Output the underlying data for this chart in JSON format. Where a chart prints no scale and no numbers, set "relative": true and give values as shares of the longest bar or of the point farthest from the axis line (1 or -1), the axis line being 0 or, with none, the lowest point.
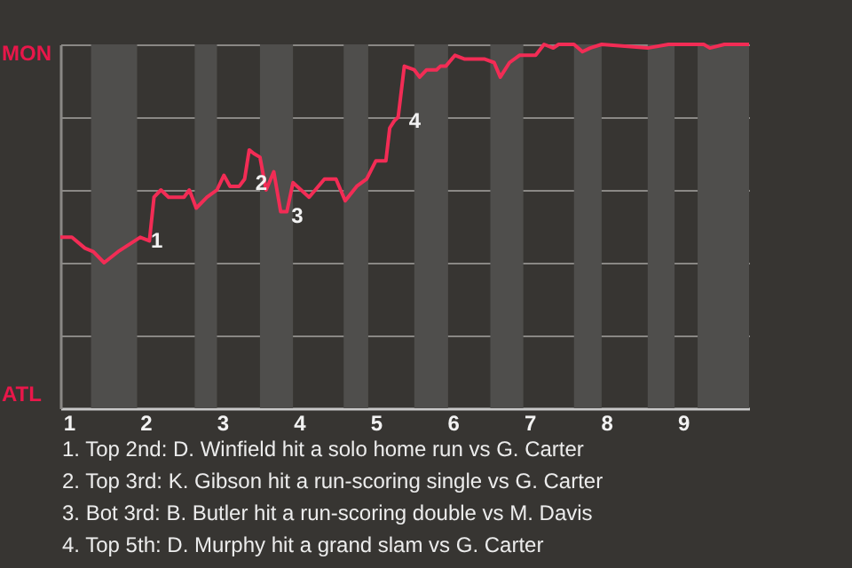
{
  "chart_data": {
    "type": "line",
    "relative": true,
    "x": [
      0.89,
      1.04,
      1.21,
      1.32,
      1.46,
      1.64,
      1.93,
      2.05,
      2.11,
      2.2,
      2.3,
      2.5,
      2.57,
      2.66,
      2.8,
      2.93,
      3.02,
      3.1,
      3.22,
      3.29,
      3.35,
      3.41,
      3.49,
      3.57,
      3.67,
      3.76,
      3.84,
      3.92,
      4.13,
      4.33,
      4.48,
      4.6,
      4.75,
      4.88,
      5,
      5.13,
      5.18,
      5.24,
      5.29,
      5.37,
      5.5,
      5.57,
      5.66,
      5.79,
      5.84,
      5.91,
      6.03,
      6.15,
      6.41,
      6.54,
      6.62,
      6.74,
      6.87,
      7.08,
      7.19,
      7.31,
      7.38,
      7.58,
      7.69,
      7.79,
      7.94,
      8.54,
      8.81,
      9.27,
      9.35,
      9.54,
      9.86
    ],
    "series": [
      {
        "color": "#f22c55",
        "values": [
          0.47,
          0.47,
          0.44,
          0.43,
          0.4,
          0.43,
          0.47,
          0.46,
          0.58,
          0.6,
          0.58,
          0.58,
          0.6,
          0.55,
          0.58,
          0.6,
          0.64,
          0.61,
          0.61,
          0.63,
          0.71,
          0.7,
          0.69,
          0.6,
          0.65,
          0.54,
          0.54,
          0.62,
          0.58,
          0.63,
          0.63,
          0.57,
          0.61,
          0.63,
          0.68,
          0.68,
          0.77,
          0.79,
          0.8,
          0.94,
          0.93,
          0.91,
          0.93,
          0.93,
          0.94,
          0.94,
          0.97,
          0.96,
          0.96,
          0.95,
          0.91,
          0.95,
          0.97,
          0.97,
          1,
          0.99,
          1,
          1,
          0.98,
          0.99,
          1,
          0.99,
          1,
          1,
          0.99,
          1,
          1
        ]
      }
    ],
    "xlim": [
      0.89,
      9.86
    ],
    "xticks": [
      1,
      2,
      3,
      4,
      5,
      6,
      7,
      8,
      9
    ],
    "grid": "y",
    "bands": [
      {
        "axis": "x",
        "from": 1.29,
        "to": 1.89,
        "color": "#4f4e4c"
      },
      {
        "axis": "x",
        "from": 2.64,
        "to": 2.93,
        "color": "#4f4e4c"
      },
      {
        "axis": "x",
        "from": 3.49,
        "to": 3.92,
        "color": "#4f4e4c"
      },
      {
        "axis": "x",
        "from": 4.58,
        "to": 4.9,
        "color": "#4f4e4c"
      },
      {
        "axis": "x",
        "from": 5.5,
        "to": 5.94,
        "color": "#4f4e4c"
      },
      {
        "axis": "x",
        "from": 6.49,
        "to": 6.92,
        "color": "#4f4e4c"
      },
      {
        "axis": "x",
        "from": 7.58,
        "to": 7.94,
        "color": "#4f4e4c"
      },
      {
        "axis": "x",
        "from": 8.54,
        "to": 8.89,
        "color": "#4f4e4c"
      },
      {
        "axis": "x",
        "from": 9.19,
        "to": 9.86,
        "color": "#4f4e4c"
      }
    ],
    "annotations": [
      {
        "text": "1",
        "x": 1.93,
        "y": 0.47
      },
      {
        "text": "2",
        "x": 3.29,
        "y": 0.63
      },
      {
        "text": "3",
        "x": 3.76,
        "y": 0.54
      },
      {
        "text": "4",
        "x": 5.29,
        "y": 0.8
      },
      "MON",
      "ATL",
      "1. Top 2nd: D. Winfield hit a solo home run vs G. Carter",
      "2. Top 3rd: K. Gibson hit a run-scoring single vs G. Carter",
      "3. Bot 3rd: B. Butler hit a run-scoring double vs M. Davis",
      "4. Top 5th: D. Murphy hit a grand slam vs G. Carter"
    ]
  }
}
